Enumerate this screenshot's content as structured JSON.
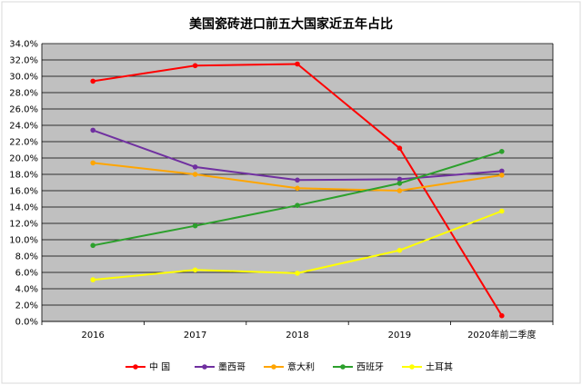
{
  "chart_data": {
    "type": "line",
    "title": "美国瓷砖进口前五大国家近五年占比",
    "xlabel": "",
    "ylabel": "",
    "categories": [
      "2016",
      "2017",
      "2018",
      "2019",
      "2020年前二季度"
    ],
    "ylim": [
      0,
      34
    ],
    "ytick_step": 2,
    "ytick_labels": [
      "0.0%",
      "2.0%",
      "4.0%",
      "6.0%",
      "8.0%",
      "10.0%",
      "12.0%",
      "14.0%",
      "16.0%",
      "18.0%",
      "20.0%",
      "22.0%",
      "24.0%",
      "26.0%",
      "28.0%",
      "30.0%",
      "32.0%",
      "34.0%"
    ],
    "grid": true,
    "legend_position": "bottom",
    "plot_background": "#c0c0c0",
    "series": [
      {
        "name": "中 国",
        "color": "#ff0000",
        "values": [
          29.4,
          31.3,
          31.5,
          21.2,
          0.7
        ]
      },
      {
        "name": "墨西哥",
        "color": "#7030a0",
        "values": [
          23.4,
          18.9,
          17.3,
          17.4,
          18.4
        ]
      },
      {
        "name": "意大利",
        "color": "#ffa500",
        "values": [
          19.4,
          18.0,
          16.3,
          16.0,
          17.9
        ]
      },
      {
        "name": "西班牙",
        "color": "#2ca02c",
        "values": [
          9.3,
          11.7,
          14.2,
          16.9,
          20.8
        ]
      },
      {
        "name": "土耳其",
        "color": "#ffff00",
        "values": [
          5.1,
          6.3,
          5.9,
          8.7,
          13.5
        ]
      }
    ]
  }
}
